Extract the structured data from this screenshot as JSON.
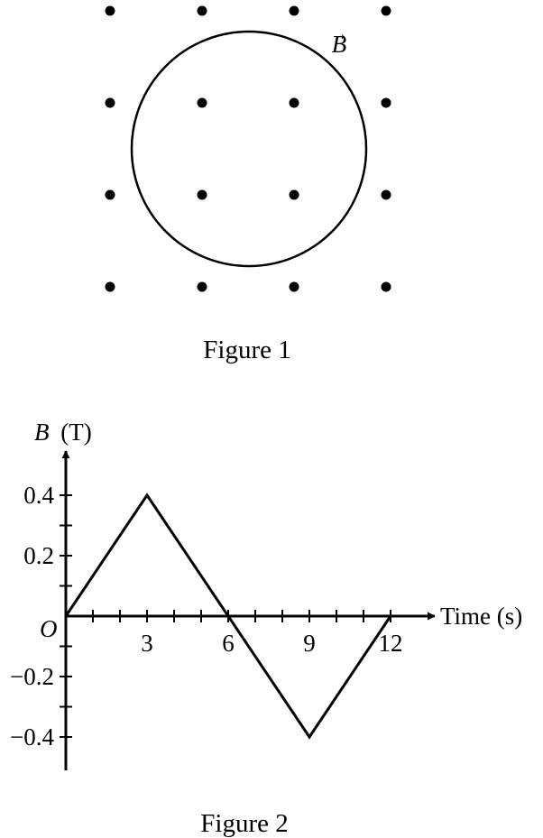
{
  "figure1": {
    "caption": "Figure 1",
    "field_label": "B",
    "field_vector_arrow": "→",
    "field_direction": "out-of-page",
    "dot_grid": {
      "rows": 4,
      "cols": 4
    }
  },
  "figure2": {
    "caption": "Figure 2",
    "origin_label": "O",
    "x_axis_title": "Time (s)",
    "y_axis_title_symbol": "B",
    "y_axis_title_unit": "(T)",
    "x_tick_labels": [
      "3",
      "6",
      "9",
      "12"
    ],
    "y_tick_labels": [
      "0.4",
      "0.2",
      "−0.2",
      "−0.4"
    ]
  },
  "chart_data": {
    "type": "line",
    "x": [
      0,
      3,
      6,
      9,
      12
    ],
    "series": [
      {
        "values": [
          0,
          0.4,
          0,
          -0.4,
          0
        ]
      }
    ],
    "xlabel": "Time (s)",
    "ylabel": "B (T)",
    "xticks": [
      3,
      6,
      9,
      12
    ],
    "yticks": [
      -0.4,
      -0.2,
      0.2,
      0.4
    ],
    "xlim": [
      0,
      12
    ],
    "ylim": [
      -0.4,
      0.4
    ],
    "grid": false,
    "color": "#000000"
  }
}
